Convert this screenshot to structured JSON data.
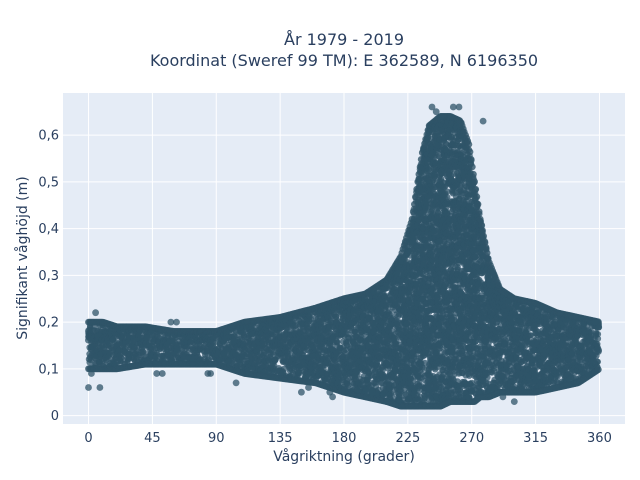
{
  "chart_data": {
    "type": "scatter",
    "title": [
      "År 1979 - 2019",
      "Koordinat (Sweref 99 TM): E 362589, N 6196350"
    ],
    "xlabel": "Vågriktning (grader)",
    "ylabel": "Signifikant våghöjd (m)",
    "xlim": [
      -18,
      378
    ],
    "ylim": [
      -0.018,
      0.69
    ],
    "x_ticks": [
      0,
      45,
      90,
      135,
      180,
      225,
      270,
      315,
      360
    ],
    "x_tick_labels": [
      "0",
      "45",
      "90",
      "135",
      "180",
      "225",
      "270",
      "315",
      "360"
    ],
    "y_ticks": [
      0,
      0.1,
      0.2,
      0.3,
      0.4,
      0.5,
      0.6
    ],
    "y_tick_labels": [
      "0",
      "0,1",
      "0,2",
      "0,3",
      "0,4",
      "0,5",
      "0,6"
    ],
    "grid": true,
    "background": "#E5ECF6",
    "marker_color": "#2F5468",
    "envelope": {
      "direction": [
        0,
        10,
        20,
        40,
        60,
        90,
        110,
        135,
        160,
        180,
        195,
        210,
        220,
        228,
        235,
        240,
        248,
        255,
        262,
        268,
        272,
        276,
        282,
        290,
        300,
        315,
        330,
        345,
        360
      ],
      "min_height": [
        0.1,
        0.1,
        0.1,
        0.11,
        0.11,
        0.11,
        0.09,
        0.08,
        0.07,
        0.05,
        0.04,
        0.03,
        0.02,
        0.02,
        0.02,
        0.02,
        0.02,
        0.03,
        0.03,
        0.03,
        0.03,
        0.04,
        0.04,
        0.05,
        0.05,
        0.05,
        0.06,
        0.07,
        0.1
      ],
      "max_height": [
        0.2,
        0.2,
        0.19,
        0.19,
        0.18,
        0.18,
        0.2,
        0.21,
        0.23,
        0.25,
        0.26,
        0.29,
        0.34,
        0.42,
        0.56,
        0.62,
        0.64,
        0.64,
        0.63,
        0.58,
        0.5,
        0.42,
        0.33,
        0.27,
        0.25,
        0.24,
        0.22,
        0.21,
        0.2
      ]
    },
    "outliers": [
      {
        "x": 0,
        "y": 0.06
      },
      {
        "x": 8,
        "y": 0.06
      },
      {
        "x": 2,
        "y": 0.09
      },
      {
        "x": 5,
        "y": 0.22
      },
      {
        "x": 48,
        "y": 0.09
      },
      {
        "x": 52,
        "y": 0.09
      },
      {
        "x": 58,
        "y": 0.2
      },
      {
        "x": 62,
        "y": 0.2
      },
      {
        "x": 84,
        "y": 0.09
      },
      {
        "x": 86,
        "y": 0.09
      },
      {
        "x": 104,
        "y": 0.07
      },
      {
        "x": 150,
        "y": 0.05
      },
      {
        "x": 155,
        "y": 0.06
      },
      {
        "x": 170,
        "y": 0.05
      },
      {
        "x": 172,
        "y": 0.04
      },
      {
        "x": 200,
        "y": 0.05
      },
      {
        "x": 210,
        "y": 0.03
      },
      {
        "x": 242,
        "y": 0.66
      },
      {
        "x": 245,
        "y": 0.65
      },
      {
        "x": 257,
        "y": 0.66
      },
      {
        "x": 261,
        "y": 0.66
      },
      {
        "x": 278,
        "y": 0.63
      },
      {
        "x": 284,
        "y": 0.06
      },
      {
        "x": 300,
        "y": 0.03
      },
      {
        "x": 340,
        "y": 0.08
      },
      {
        "x": 352,
        "y": 0.09
      },
      {
        "x": 357,
        "y": 0.2
      },
      {
        "x": 280,
        "y": 0.07
      },
      {
        "x": 268,
        "y": 0.04
      },
      {
        "x": 292,
        "y": 0.04
      }
    ]
  }
}
